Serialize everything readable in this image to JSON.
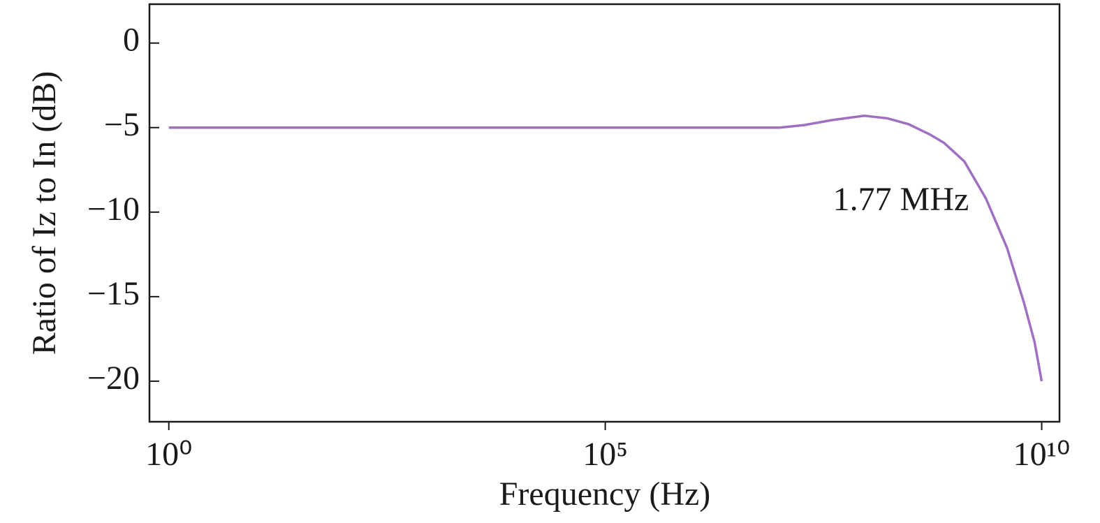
{
  "chart_data": {
    "type": "line",
    "x_label": "Frequency (Hz)",
    "y_label": "Ratio of Iz to In (dB)",
    "annotation": "1.77 MHz",
    "x_log": true,
    "x": [
      1,
      1000,
      100000,
      1000000,
      10000000,
      19000000,
      40000000,
      93000000,
      170000000,
      300000000,
      520000000,
      760000000,
      1300000000,
      2300000000,
      4000000000,
      6300000000,
      8300000000,
      10000000000
    ],
    "series": [
      {
        "color": "#a070c0",
        "values": [
          -5,
          -5,
          -5,
          -5,
          -5,
          -4.85,
          -4.55,
          -4.3,
          -4.45,
          -4.8,
          -5.4,
          -5.9,
          -7.0,
          -9.2,
          -12.1,
          -15.4,
          -17.7,
          -20
        ]
      }
    ],
    "xlim": [
      0.6,
      16000000000
    ],
    "ylim": [
      -22.4,
      2.3
    ],
    "xticks": [
      {
        "value": 1,
        "label": "10⁰"
      },
      {
        "value": 100000,
        "label": "10⁵"
      },
      {
        "value": 10000000000,
        "label": "10¹⁰"
      }
    ],
    "yticks": [
      0,
      {
        "value": -5,
        "label": "−5"
      },
      {
        "value": -10,
        "label": "−10"
      },
      {
        "value": -15,
        "label": "−15"
      },
      {
        "value": -20,
        "label": "−20"
      }
    ]
  }
}
